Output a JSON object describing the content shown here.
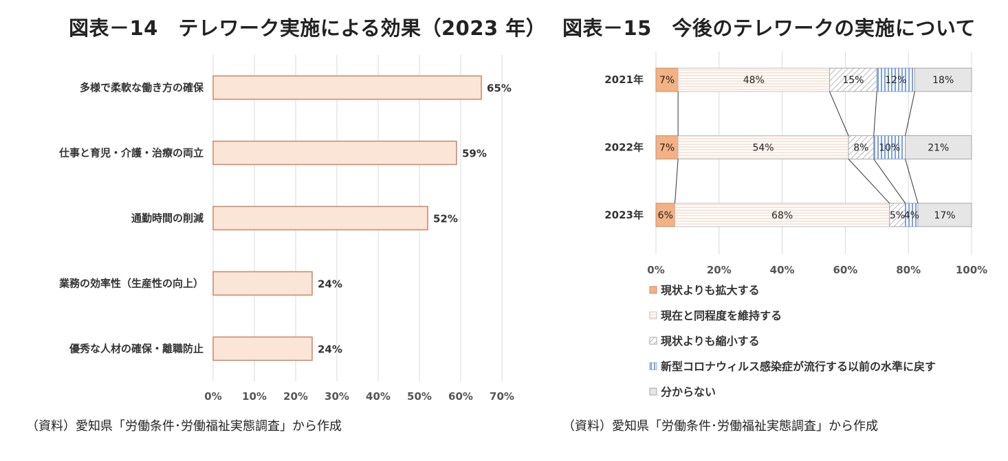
{
  "titles": {
    "left": "図表－14　テレワーク実施による効果（2023 年）",
    "right": "図表－15　今後のテレワークの実施について"
  },
  "sources": {
    "left": "（資料）愛知県「労働条件･労働福祉実態調査」から作成",
    "right": "（資料）愛知県「労働条件･労働福祉実態調査」から作成"
  },
  "chart_data": [
    {
      "type": "bar",
      "orientation": "horizontal",
      "categories": [
        "多様で柔軟な働き方の確保",
        "仕事と育児・介護・治療の両立",
        "通勤時間の削減",
        "業務の効率性（生産性の向上）",
        "優秀な人材の確保・離職防止"
      ],
      "values": [
        65,
        59,
        52,
        24,
        24
      ],
      "value_labels": [
        "65%",
        "59%",
        "52%",
        "24%",
        "24%"
      ],
      "xlim": [
        0,
        70
      ],
      "ticks": [
        0,
        10,
        20,
        30,
        40,
        50,
        60,
        70
      ],
      "tick_labels": [
        "0%",
        "10%",
        "20%",
        "30%",
        "40%",
        "50%",
        "60%",
        "70%"
      ],
      "grid": true,
      "colors": {
        "fill": "#fbe5d6",
        "stroke": "#c9856a",
        "grid": "#d9d9d9"
      }
    },
    {
      "type": "bar",
      "orientation": "horizontal",
      "stacked": true,
      "percent": true,
      "categories": [
        "2021年",
        "2022年",
        "2023年"
      ],
      "series": [
        {
          "name": "現状よりも拡大する",
          "values": [
            7,
            7,
            6
          ],
          "labels": [
            "7%",
            "7%",
            "6%"
          ],
          "color": "#f4b183",
          "pattern": "solid"
        },
        {
          "name": "現在と同程度を維持する",
          "values": [
            48,
            54,
            68
          ],
          "labels": [
            "48%",
            "54%",
            "68%"
          ],
          "color": "#ffffff",
          "pattern": "horizontal-lines"
        },
        {
          "name": "現状よりも縮小する",
          "values": [
            15,
            8,
            5
          ],
          "labels": [
            "15%",
            "8%",
            "5%"
          ],
          "color": "#d9d9d9",
          "pattern": "diagonal"
        },
        {
          "name": "新型コロナウィルス感染症が流行する以前の水準に戻す",
          "values": [
            12,
            10,
            4
          ],
          "labels": [
            "12%",
            "10%",
            "4%"
          ],
          "color": "#8faadc",
          "pattern": "vertical-lines"
        },
        {
          "name": "分からない",
          "values": [
            18,
            21,
            17
          ],
          "labels": [
            "18%",
            "21%",
            "17%"
          ],
          "color": "#e7e6e6",
          "pattern": "solid"
        }
      ],
      "xlim": [
        0,
        100
      ],
      "ticks": [
        0,
        20,
        40,
        60,
        80,
        100
      ],
      "tick_labels": [
        "0%",
        "20%",
        "40%",
        "60%",
        "80%",
        "100%"
      ],
      "series_lines": true,
      "grid": true,
      "legend_position": "bottom"
    }
  ]
}
